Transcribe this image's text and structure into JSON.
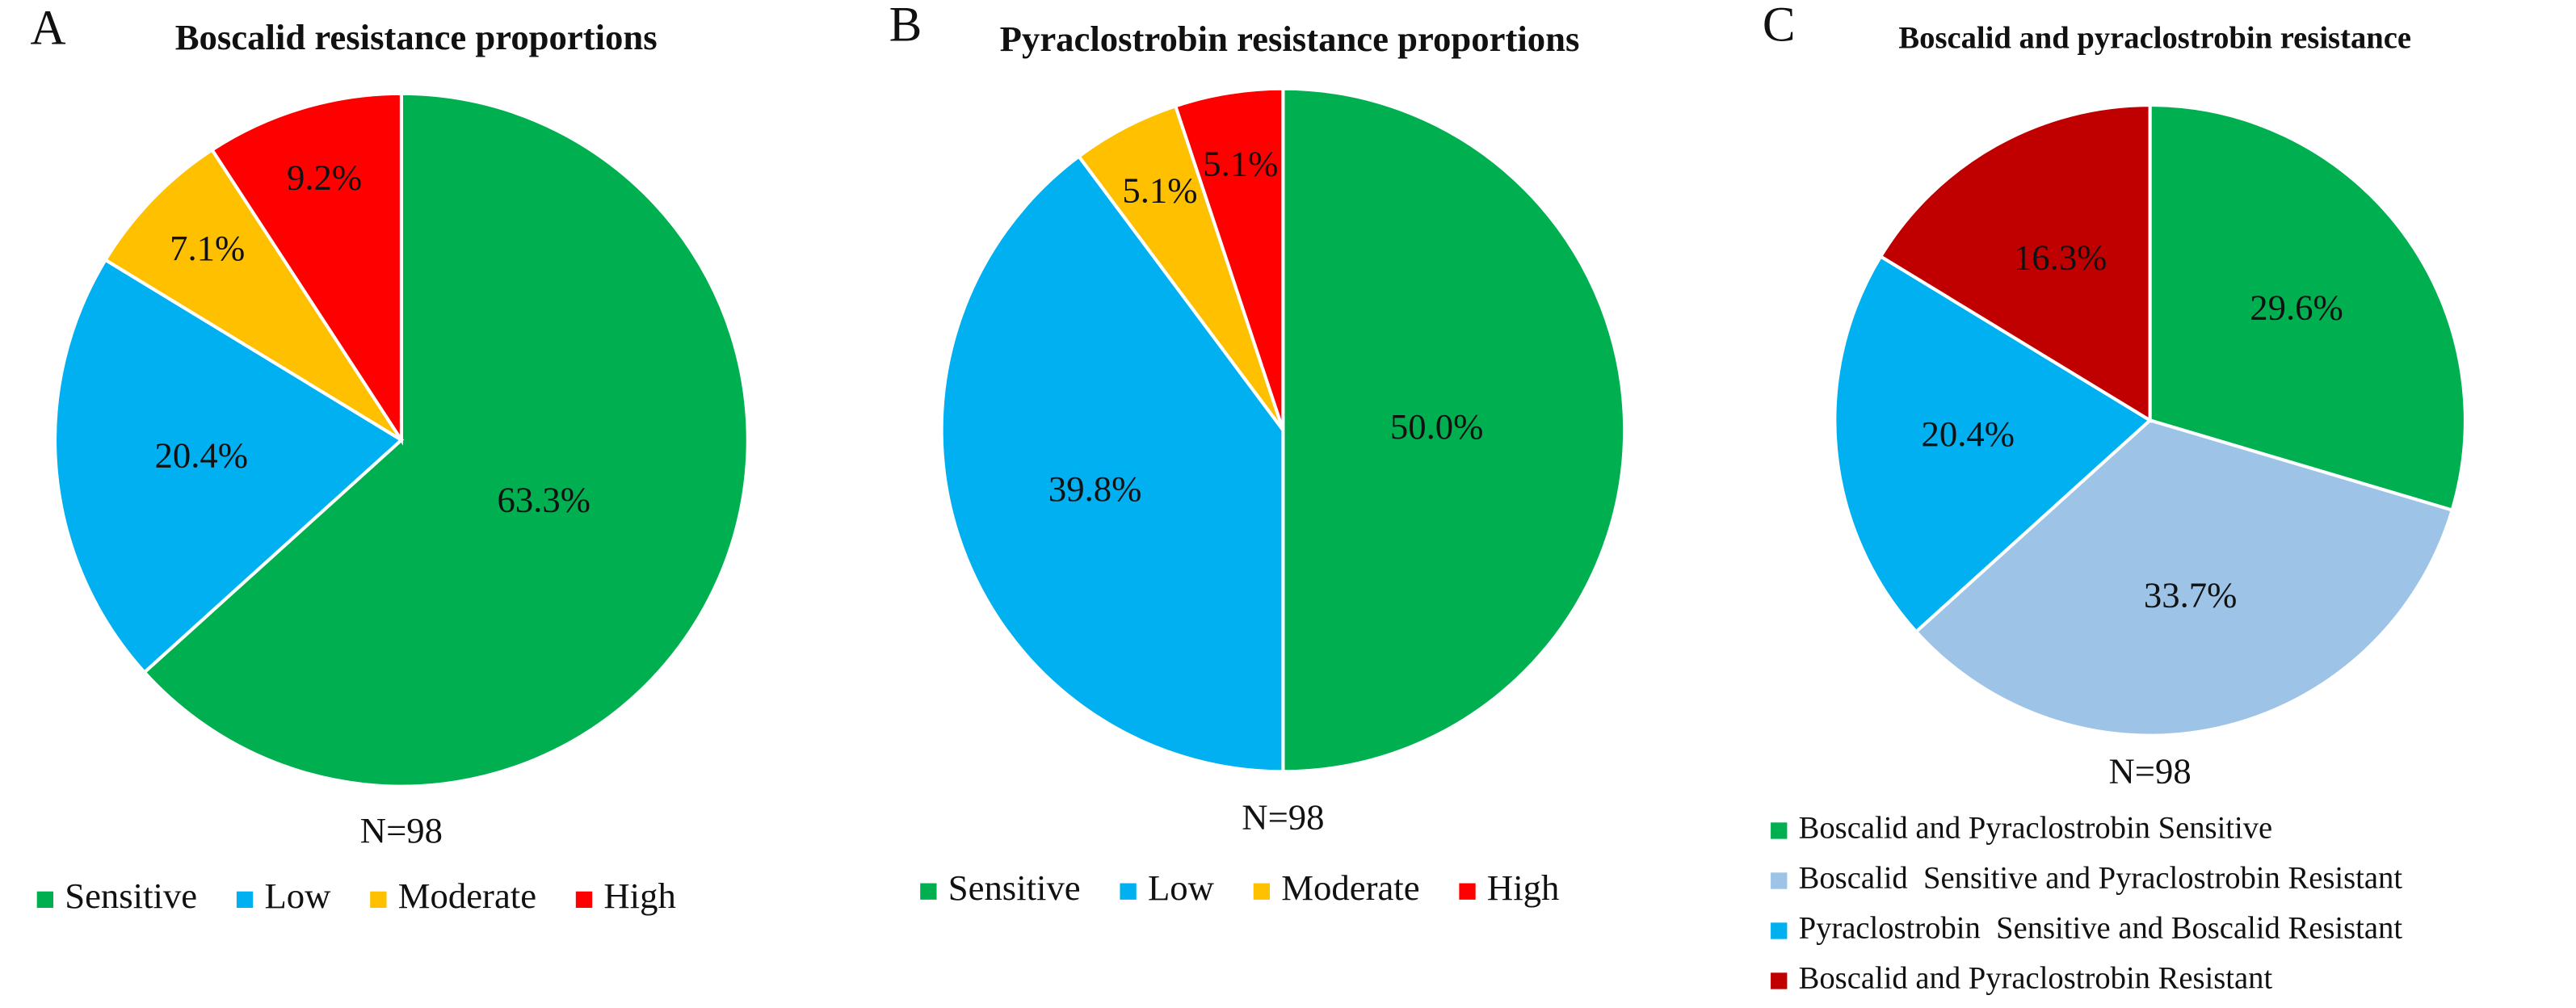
{
  "chart_data": [
    {
      "type": "pie",
      "panel_label": "A",
      "title": "Boscalid resistance proportions",
      "annotation": "N=98",
      "categories": [
        "Sensitive",
        "Low",
        "Moderate",
        "High"
      ],
      "values": [
        63.3,
        20.4,
        7.1,
        9.2
      ],
      "value_labels": [
        "63.3%",
        "20.4%",
        "7.1%",
        "9.2%"
      ],
      "colors": [
        "#00b050",
        "#00b0f0",
        "#ffc000",
        "#ff0000"
      ],
      "legend": "bottom"
    },
    {
      "type": "pie",
      "panel_label": "B",
      "title": "Pyraclostrobin resistance proportions",
      "annotation": "N=98",
      "categories": [
        "Sensitive",
        "Low",
        "Moderate",
        "High"
      ],
      "values": [
        50.0,
        39.8,
        5.1,
        5.1
      ],
      "value_labels": [
        "50.0%",
        "39.8%",
        "5.1%",
        "5.1%"
      ],
      "colors": [
        "#00b050",
        "#00b0f0",
        "#ffc000",
        "#ff0000"
      ],
      "legend": "bottom"
    },
    {
      "type": "pie",
      "panel_label": "C",
      "title": "Boscalid and pyraclostrobin resistance",
      "annotation": "N=98",
      "categories": [
        "Boscalid and Pyraclostrobin Sensitive",
        "Boscalid  Sensitive and Pyraclostrobin Resistant",
        "Pyraclostrobin  Sensitive and Boscalid Resistant",
        "Boscalid and Pyraclostrobin Resistant"
      ],
      "values": [
        29.6,
        33.7,
        20.4,
        16.3
      ],
      "value_labels": [
        "29.6%",
        "33.7%",
        "20.4%",
        "16.3%"
      ],
      "colors": [
        "#00b050",
        "#9dc3e6",
        "#00b0f0",
        "#c00000"
      ],
      "legend": "bottom-left"
    }
  ]
}
